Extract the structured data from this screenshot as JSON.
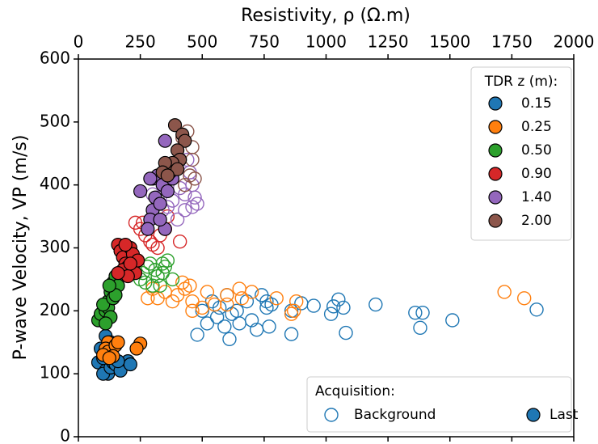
{
  "chart_data": {
    "type": "scatter",
    "xlabel": "Resistivity, ρ (Ω.m)",
    "ylabel": "P-wave Velocity, VP (m/s)",
    "xlim": [
      0,
      2000
    ],
    "ylim": [
      0,
      600
    ],
    "xticks": [
      0,
      250,
      500,
      750,
      1000,
      1250,
      1500,
      1750,
      2000
    ],
    "yticks": [
      0,
      100,
      200,
      300,
      400,
      500,
      600
    ],
    "legend_title": "TDR z (m):",
    "acquisition_title": "Acquisition:",
    "acquisition_labels": [
      "Background",
      "Last"
    ],
    "series": [
      {
        "name": "0.15",
        "color": "#1f77b4",
        "background": {
          "x": [
            1850,
            1510,
            1390,
            1380,
            1360,
            1200,
            1080,
            1070,
            1050,
            1030,
            1020,
            950,
            900,
            860,
            860,
            780,
            770,
            760,
            740,
            720,
            700,
            680,
            650,
            640,
            620,
            610,
            600,
            590,
            570,
            560,
            540,
            520,
            500,
            480,
            760
          ],
          "y": [
            202,
            185,
            197,
            173,
            197,
            210,
            165,
            205,
            218,
            207,
            195,
            208,
            212,
            163,
            200,
            210,
            175,
            215,
            225,
            170,
            185,
            215,
            180,
            200,
            195,
            155,
            225,
            175,
            205,
            190,
            215,
            180,
            200,
            162,
            205
          ]
        },
        "last": {
          "x": [
            100,
            90,
            80,
            110,
            120,
            100,
            130,
            140,
            150,
            170,
            200,
            210,
            120,
            110,
            130,
            90,
            100,
            160
          ],
          "y": [
            115,
            120,
            118,
            105,
            100,
            100,
            110,
            118,
            115,
            105,
            120,
            115,
            125,
            160,
            150,
            140,
            125,
            120
          ]
        }
      },
      {
        "name": "0.25",
        "color": "#ff7f0e",
        "background": {
          "x": [
            1720,
            1800,
            870,
            860,
            880,
            800,
            700,
            650,
            600,
            550,
            500,
            460,
            450,
            420,
            400,
            380,
            350,
            320,
            300,
            280,
            460,
            520,
            430,
            600,
            660
          ],
          "y": [
            230,
            220,
            200,
            195,
            215,
            220,
            230,
            235,
            225,
            210,
            205,
            200,
            240,
            245,
            225,
            215,
            230,
            220,
            235,
            220,
            215,
            230,
            235,
            210,
            220
          ]
        },
        "last": {
          "x": [
            140,
            120,
            110,
            130,
            120,
            150,
            160,
            250,
            235,
            100,
            140,
            125
          ],
          "y": [
            145,
            150,
            140,
            130,
            135,
            145,
            150,
            148,
            140,
            130,
            128,
            125
          ]
        }
      },
      {
        "name": "0.50",
        "color": "#2ca02c",
        "background": {
          "x": [
            250,
            260,
            280,
            290,
            300,
            320,
            340,
            350,
            360,
            380,
            330,
            310,
            270,
            340
          ],
          "y": [
            250,
            260,
            270,
            275,
            240,
            255,
            260,
            270,
            280,
            250,
            240,
            265,
            245,
            275
          ]
        },
        "last": {
          "x": [
            100,
            80,
            90,
            110,
            120,
            130,
            140,
            150,
            160,
            120,
            100,
            140,
            130,
            110,
            150,
            125
          ],
          "y": [
            185,
            185,
            195,
            200,
            215,
            230,
            245,
            255,
            240,
            205,
            210,
            220,
            190,
            180,
            225,
            240
          ]
        }
      },
      {
        "name": "0.90",
        "color": "#d62728",
        "background": {
          "x": [
            230,
            250,
            270,
            300,
            320,
            240,
            350,
            360,
            410,
            290,
            260,
            330
          ],
          "y": [
            340,
            330,
            320,
            305,
            300,
            280,
            330,
            350,
            310,
            310,
            340,
            320
          ]
        },
        "last": {
          "x": [
            160,
            170,
            180,
            190,
            200,
            210,
            220,
            180,
            230,
            240,
            200,
            160,
            190,
            210
          ],
          "y": [
            305,
            295,
            285,
            275,
            270,
            300,
            290,
            265,
            260,
            280,
            255,
            260,
            305,
            275
          ]
        }
      },
      {
        "name": "1.40",
        "color": "#9467bd",
        "background": {
          "x": [
            480,
            470,
            460,
            450,
            430,
            410,
            380,
            360,
            340,
            320,
            300,
            440,
            430,
            400,
            460
          ],
          "y": [
            370,
            380,
            400,
            420,
            385,
            395,
            375,
            365,
            360,
            380,
            385,
            440,
            360,
            345,
            365
          ]
        },
        "last": {
          "x": [
            300,
            320,
            340,
            360,
            300,
            290,
            280,
            350,
            330,
            310,
            250,
            350,
            290,
            330,
            380
          ],
          "y": [
            410,
            415,
            400,
            390,
            360,
            345,
            330,
            330,
            345,
            380,
            390,
            470,
            410,
            370,
            410
          ]
        }
      },
      {
        "name": "2.00",
        "color": "#8c564b",
        "background": {
          "x": [
            440,
            460,
            420,
            450,
            430,
            460,
            410,
            470
          ],
          "y": [
            485,
            460,
            475,
            415,
            400,
            440,
            440,
            410
          ]
        },
        "last": {
          "x": [
            390,
            420,
            430,
            400,
            410,
            380,
            370,
            350,
            340,
            400,
            360
          ],
          "y": [
            495,
            480,
            470,
            455,
            440,
            435,
            420,
            435,
            420,
            425,
            415
          ]
        }
      }
    ]
  }
}
